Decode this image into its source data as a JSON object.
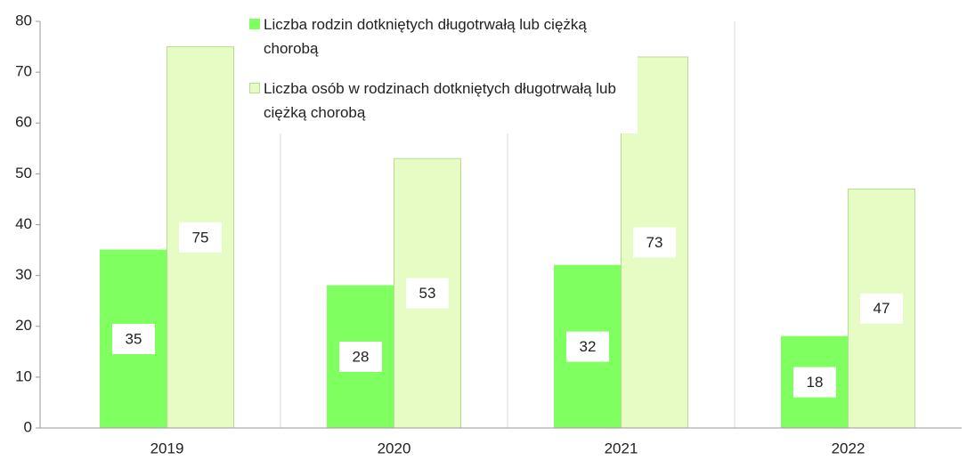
{
  "chart_data": {
    "type": "bar",
    "categories": [
      "2019",
      "2020",
      "2021",
      "2022"
    ],
    "series": [
      {
        "name": "Liczba rodzin dotkniętych długotrwałą lub ciężką chorobą",
        "color": "#80ff60",
        "border": "#80ff60",
        "values": [
          35,
          28,
          32,
          18
        ]
      },
      {
        "name": "Liczba osób w rodzinach dotkniętych długotrwałą lub ciężką chorobą",
        "color": "#e6fcc4",
        "border": "#b5df90",
        "values": [
          75,
          53,
          73,
          47
        ]
      }
    ],
    "ylim": [
      0,
      80
    ],
    "yticks": [
      0,
      10,
      20,
      30,
      40,
      50,
      60,
      70,
      80
    ],
    "grid": true,
    "legend": "top"
  }
}
